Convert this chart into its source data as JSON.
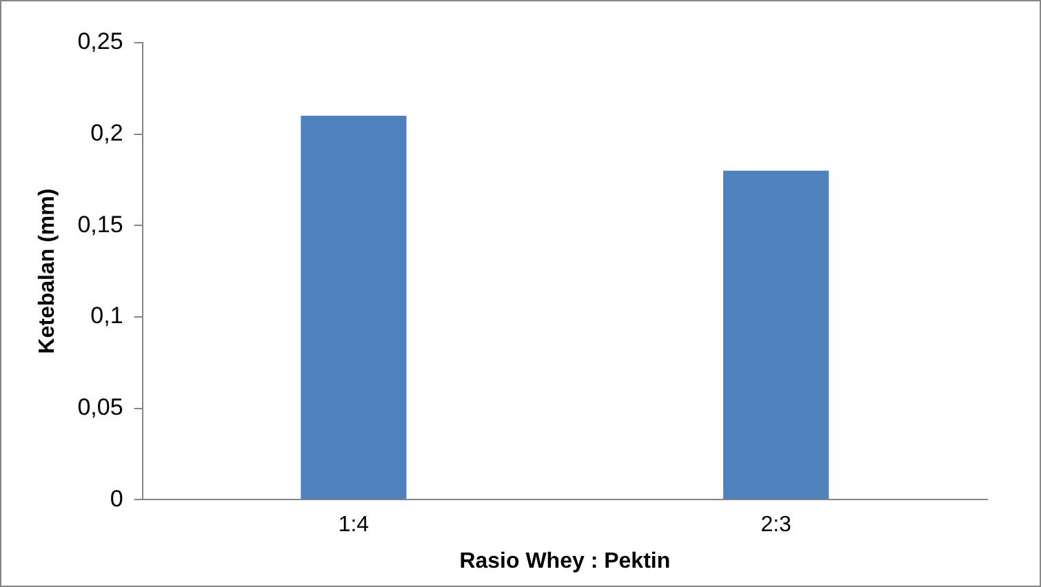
{
  "chart_data": {
    "type": "bar",
    "xlabel": "Rasio Whey : Pektin",
    "ylabel": "Ketebalan (mm)",
    "categories": [
      "1:4",
      "2:3"
    ],
    "series": [
      {
        "color": "#4f81bd",
        "values": [
          0.21,
          0.18
        ]
      }
    ],
    "ylim": [
      0,
      0.25
    ],
    "yticks": [
      {
        "value": 0,
        "label": "0"
      },
      {
        "value": 0.05,
        "label": "0,05"
      },
      {
        "value": 0.1,
        "label": "0,1"
      },
      {
        "value": 0.15,
        "label": "0,15"
      },
      {
        "value": 0.2,
        "label": "0,2"
      },
      {
        "value": 0.25,
        "label": "0,25"
      }
    ],
    "grid": false,
    "legend": false
  }
}
